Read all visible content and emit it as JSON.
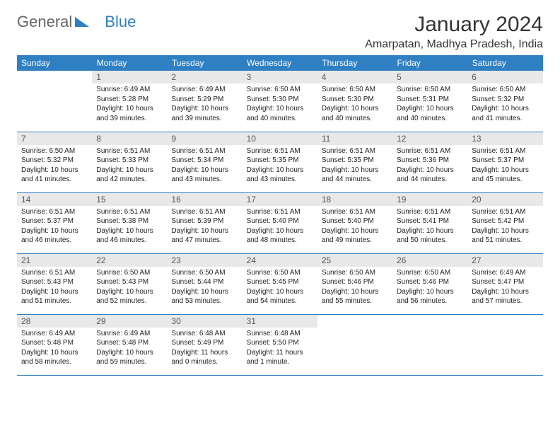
{
  "logo": {
    "part1": "General",
    "part2": "Blue"
  },
  "title": "January 2024",
  "location": "Amarpatan, Madhya Pradesh, India",
  "colors": {
    "accent": "#2f80c2",
    "daynum_bg": "#e8e8e8",
    "text": "#222222",
    "bg": "#ffffff"
  },
  "weekdays": [
    "Sunday",
    "Monday",
    "Tuesday",
    "Wednesday",
    "Thursday",
    "Friday",
    "Saturday"
  ],
  "weeks": [
    [
      null,
      {
        "n": "1",
        "sr": "6:49 AM",
        "ss": "5:28 PM",
        "dl": "10 hours and 39 minutes."
      },
      {
        "n": "2",
        "sr": "6:49 AM",
        "ss": "5:29 PM",
        "dl": "10 hours and 39 minutes."
      },
      {
        "n": "3",
        "sr": "6:50 AM",
        "ss": "5:30 PM",
        "dl": "10 hours and 40 minutes."
      },
      {
        "n": "4",
        "sr": "6:50 AM",
        "ss": "5:30 PM",
        "dl": "10 hours and 40 minutes."
      },
      {
        "n": "5",
        "sr": "6:50 AM",
        "ss": "5:31 PM",
        "dl": "10 hours and 40 minutes."
      },
      {
        "n": "6",
        "sr": "6:50 AM",
        "ss": "5:32 PM",
        "dl": "10 hours and 41 minutes."
      }
    ],
    [
      {
        "n": "7",
        "sr": "6:50 AM",
        "ss": "5:32 PM",
        "dl": "10 hours and 41 minutes."
      },
      {
        "n": "8",
        "sr": "6:51 AM",
        "ss": "5:33 PM",
        "dl": "10 hours and 42 minutes."
      },
      {
        "n": "9",
        "sr": "6:51 AM",
        "ss": "5:34 PM",
        "dl": "10 hours and 43 minutes."
      },
      {
        "n": "10",
        "sr": "6:51 AM",
        "ss": "5:35 PM",
        "dl": "10 hours and 43 minutes."
      },
      {
        "n": "11",
        "sr": "6:51 AM",
        "ss": "5:35 PM",
        "dl": "10 hours and 44 minutes."
      },
      {
        "n": "12",
        "sr": "6:51 AM",
        "ss": "5:36 PM",
        "dl": "10 hours and 44 minutes."
      },
      {
        "n": "13",
        "sr": "6:51 AM",
        "ss": "5:37 PM",
        "dl": "10 hours and 45 minutes."
      }
    ],
    [
      {
        "n": "14",
        "sr": "6:51 AM",
        "ss": "5:37 PM",
        "dl": "10 hours and 46 minutes."
      },
      {
        "n": "15",
        "sr": "6:51 AM",
        "ss": "5:38 PM",
        "dl": "10 hours and 46 minutes."
      },
      {
        "n": "16",
        "sr": "6:51 AM",
        "ss": "5:39 PM",
        "dl": "10 hours and 47 minutes."
      },
      {
        "n": "17",
        "sr": "6:51 AM",
        "ss": "5:40 PM",
        "dl": "10 hours and 48 minutes."
      },
      {
        "n": "18",
        "sr": "6:51 AM",
        "ss": "5:40 PM",
        "dl": "10 hours and 49 minutes."
      },
      {
        "n": "19",
        "sr": "6:51 AM",
        "ss": "5:41 PM",
        "dl": "10 hours and 50 minutes."
      },
      {
        "n": "20",
        "sr": "6:51 AM",
        "ss": "5:42 PM",
        "dl": "10 hours and 51 minutes."
      }
    ],
    [
      {
        "n": "21",
        "sr": "6:51 AM",
        "ss": "5:43 PM",
        "dl": "10 hours and 51 minutes."
      },
      {
        "n": "22",
        "sr": "6:50 AM",
        "ss": "5:43 PM",
        "dl": "10 hours and 52 minutes."
      },
      {
        "n": "23",
        "sr": "6:50 AM",
        "ss": "5:44 PM",
        "dl": "10 hours and 53 minutes."
      },
      {
        "n": "24",
        "sr": "6:50 AM",
        "ss": "5:45 PM",
        "dl": "10 hours and 54 minutes."
      },
      {
        "n": "25",
        "sr": "6:50 AM",
        "ss": "5:46 PM",
        "dl": "10 hours and 55 minutes."
      },
      {
        "n": "26",
        "sr": "6:50 AM",
        "ss": "5:46 PM",
        "dl": "10 hours and 56 minutes."
      },
      {
        "n": "27",
        "sr": "6:49 AM",
        "ss": "5:47 PM",
        "dl": "10 hours and 57 minutes."
      }
    ],
    [
      {
        "n": "28",
        "sr": "6:49 AM",
        "ss": "5:48 PM",
        "dl": "10 hours and 58 minutes."
      },
      {
        "n": "29",
        "sr": "6:49 AM",
        "ss": "5:48 PM",
        "dl": "10 hours and 59 minutes."
      },
      {
        "n": "30",
        "sr": "6:48 AM",
        "ss": "5:49 PM",
        "dl": "11 hours and 0 minutes."
      },
      {
        "n": "31",
        "sr": "6:48 AM",
        "ss": "5:50 PM",
        "dl": "11 hours and 1 minute."
      },
      null,
      null,
      null
    ]
  ],
  "labels": {
    "sunrise": "Sunrise:",
    "sunset": "Sunset:",
    "daylight": "Daylight:"
  }
}
